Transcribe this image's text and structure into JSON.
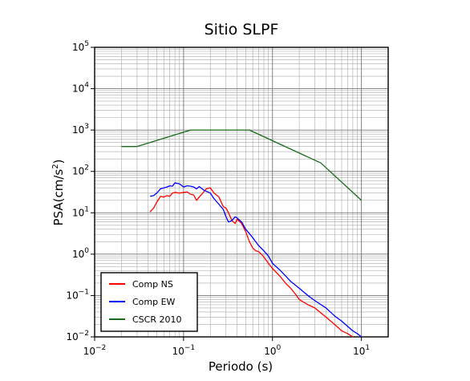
{
  "chart_data": {
    "type": "line",
    "title": "Sitio SLPF",
    "xlabel": "Periodo (s)",
    "ylabel_main": "PSA(cm/s",
    "ylabel_sup": "2",
    "ylabel_close": ")",
    "xscale": "log",
    "yscale": "log",
    "xlim": [
      0.01,
      20
    ],
    "ylim": [
      0.01,
      100000
    ],
    "grid": true,
    "legend_position": "bottom-left",
    "x_ticks": [
      {
        "value": 0.01,
        "base": "10",
        "exp": "−2"
      },
      {
        "value": 0.1,
        "base": "10",
        "exp": "−1"
      },
      {
        "value": 1,
        "base": "10",
        "exp": "0"
      },
      {
        "value": 10,
        "base": "10",
        "exp": "1"
      }
    ],
    "y_ticks": [
      {
        "value": 0.01,
        "base": "10",
        "exp": "−2"
      },
      {
        "value": 0.1,
        "base": "10",
        "exp": "−1"
      },
      {
        "value": 1,
        "base": "10",
        "exp": "0"
      },
      {
        "value": 10,
        "base": "10",
        "exp": "1"
      },
      {
        "value": 100,
        "base": "10",
        "exp": "2"
      },
      {
        "value": 1000,
        "base": "10",
        "exp": "3"
      },
      {
        "value": 10000,
        "base": "10",
        "exp": "4"
      },
      {
        "value": 100000,
        "base": "10",
        "exp": "5"
      }
    ],
    "series": [
      {
        "name": "Comp NS",
        "color": "#ff0000",
        "points": [
          [
            0.042,
            10.5
          ],
          [
            0.046,
            13
          ],
          [
            0.05,
            18
          ],
          [
            0.055,
            25
          ],
          [
            0.06,
            24
          ],
          [
            0.065,
            26
          ],
          [
            0.07,
            25
          ],
          [
            0.075,
            30
          ],
          [
            0.08,
            31
          ],
          [
            0.09,
            30
          ],
          [
            0.1,
            31
          ],
          [
            0.11,
            32
          ],
          [
            0.12,
            28
          ],
          [
            0.13,
            27
          ],
          [
            0.14,
            20
          ],
          [
            0.15,
            24
          ],
          [
            0.16,
            28
          ],
          [
            0.18,
            38
          ],
          [
            0.2,
            40
          ],
          [
            0.22,
            30
          ],
          [
            0.25,
            24
          ],
          [
            0.28,
            14
          ],
          [
            0.3,
            13
          ],
          [
            0.32,
            10
          ],
          [
            0.35,
            6.5
          ],
          [
            0.38,
            5.5
          ],
          [
            0.4,
            7
          ],
          [
            0.45,
            5.5
          ],
          [
            0.5,
            3.5
          ],
          [
            0.55,
            2.0
          ],
          [
            0.6,
            1.4
          ],
          [
            0.65,
            1.2
          ],
          [
            0.7,
            1.15
          ],
          [
            0.75,
            1.0
          ],
          [
            0.8,
            0.85
          ],
          [
            0.9,
            0.6
          ],
          [
            1.0,
            0.45
          ],
          [
            1.2,
            0.3
          ],
          [
            1.4,
            0.2
          ],
          [
            1.6,
            0.15
          ],
          [
            1.8,
            0.11
          ],
          [
            2.0,
            0.08
          ],
          [
            2.5,
            0.06
          ],
          [
            3.0,
            0.05
          ],
          [
            4.0,
            0.03
          ],
          [
            5.0,
            0.02
          ],
          [
            6.0,
            0.014
          ],
          [
            7.0,
            0.012
          ],
          [
            8.0,
            0.01
          ]
        ]
      },
      {
        "name": "Comp EW",
        "color": "#0000ff",
        "points": [
          [
            0.042,
            25
          ],
          [
            0.046,
            26
          ],
          [
            0.05,
            30
          ],
          [
            0.055,
            38
          ],
          [
            0.06,
            40
          ],
          [
            0.065,
            42
          ],
          [
            0.07,
            45
          ],
          [
            0.075,
            44
          ],
          [
            0.08,
            53
          ],
          [
            0.09,
            50
          ],
          [
            0.1,
            42
          ],
          [
            0.11,
            45
          ],
          [
            0.12,
            44
          ],
          [
            0.13,
            42
          ],
          [
            0.14,
            38
          ],
          [
            0.15,
            43
          ],
          [
            0.17,
            35
          ],
          [
            0.2,
            30
          ],
          [
            0.22,
            22
          ],
          [
            0.25,
            16
          ],
          [
            0.28,
            12
          ],
          [
            0.3,
            8
          ],
          [
            0.32,
            6
          ],
          [
            0.35,
            6.5
          ],
          [
            0.38,
            8
          ],
          [
            0.4,
            7.5
          ],
          [
            0.45,
            6
          ],
          [
            0.5,
            4
          ],
          [
            0.6,
            2.5
          ],
          [
            0.7,
            1.6
          ],
          [
            0.8,
            1.2
          ],
          [
            0.9,
            0.9
          ],
          [
            1.0,
            0.6
          ],
          [
            1.2,
            0.42
          ],
          [
            1.4,
            0.3
          ],
          [
            1.6,
            0.22
          ],
          [
            2.0,
            0.15
          ],
          [
            2.5,
            0.1
          ],
          [
            3.0,
            0.075
          ],
          [
            4.0,
            0.05
          ],
          [
            5.0,
            0.032
          ],
          [
            6.0,
            0.024
          ],
          [
            7.0,
            0.018
          ],
          [
            8.0,
            0.014
          ],
          [
            9.0,
            0.012
          ],
          [
            10.0,
            0.01
          ]
        ]
      },
      {
        "name": "CSCR 2010",
        "color": "#1a6b1a",
        "points": [
          [
            0.02,
            400
          ],
          [
            0.03,
            400
          ],
          [
            0.12,
            1000
          ],
          [
            0.55,
            1000
          ],
          [
            3.5,
            160
          ],
          [
            10.0,
            20
          ]
        ]
      }
    ]
  }
}
